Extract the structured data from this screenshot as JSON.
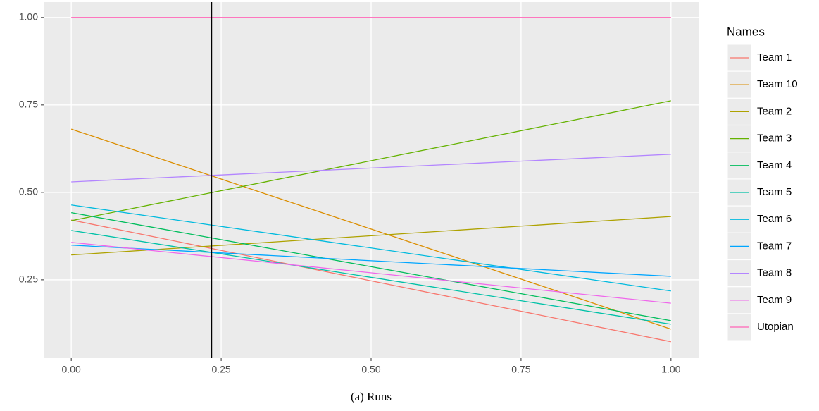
{
  "chart_data": {
    "type": "line",
    "legend_title": "Names",
    "caption": "(a) Runs",
    "x": [
      0,
      1
    ],
    "xlim": [
      -0.046,
      1.046
    ],
    "ylim": [
      0.026,
      1.044
    ],
    "xticks": [
      {
        "value": 0,
        "label": "0.00"
      },
      {
        "value": 0.25,
        "label": "0.25"
      },
      {
        "value": 0.5,
        "label": "0.50"
      },
      {
        "value": 0.75,
        "label": "0.75"
      },
      {
        "value": 1,
        "label": "1.00"
      }
    ],
    "yticks": [
      {
        "value": 0.25,
        "label": "0.25"
      },
      {
        "value": 0.5,
        "label": "0.50"
      },
      {
        "value": 0.75,
        "label": "0.75"
      },
      {
        "value": 1,
        "label": "1.00"
      }
    ],
    "grid": true,
    "legend": "right",
    "vline": 0.234,
    "vline_color": "#000000",
    "series": [
      {
        "name": "Team 1",
        "color": "#F8766D",
        "values": [
          0.421,
          0.073
        ]
      },
      {
        "name": "Team 10",
        "color": "#DB8E00",
        "values": [
          0.681,
          0.109
        ]
      },
      {
        "name": "Team 2",
        "color": "#AEA200",
        "values": [
          0.321,
          0.431
        ]
      },
      {
        "name": "Team 3",
        "color": "#64B200",
        "values": [
          0.419,
          0.762
        ]
      },
      {
        "name": "Team 4",
        "color": "#00BD5C",
        "values": [
          0.442,
          0.133
        ]
      },
      {
        "name": "Team 5",
        "color": "#00C1A7",
        "values": [
          0.391,
          0.123
        ]
      },
      {
        "name": "Team 6",
        "color": "#00BADE",
        "values": [
          0.464,
          0.218
        ]
      },
      {
        "name": "Team 7",
        "color": "#00A6FF",
        "values": [
          0.349,
          0.26
        ]
      },
      {
        "name": "Team 8",
        "color": "#B385FF",
        "values": [
          0.53,
          0.609
        ]
      },
      {
        "name": "Team 9",
        "color": "#EF67EB",
        "values": [
          0.357,
          0.183
        ]
      },
      {
        "name": "Utopian",
        "color": "#FF63B6",
        "values": [
          1.0,
          1.0
        ]
      }
    ]
  }
}
